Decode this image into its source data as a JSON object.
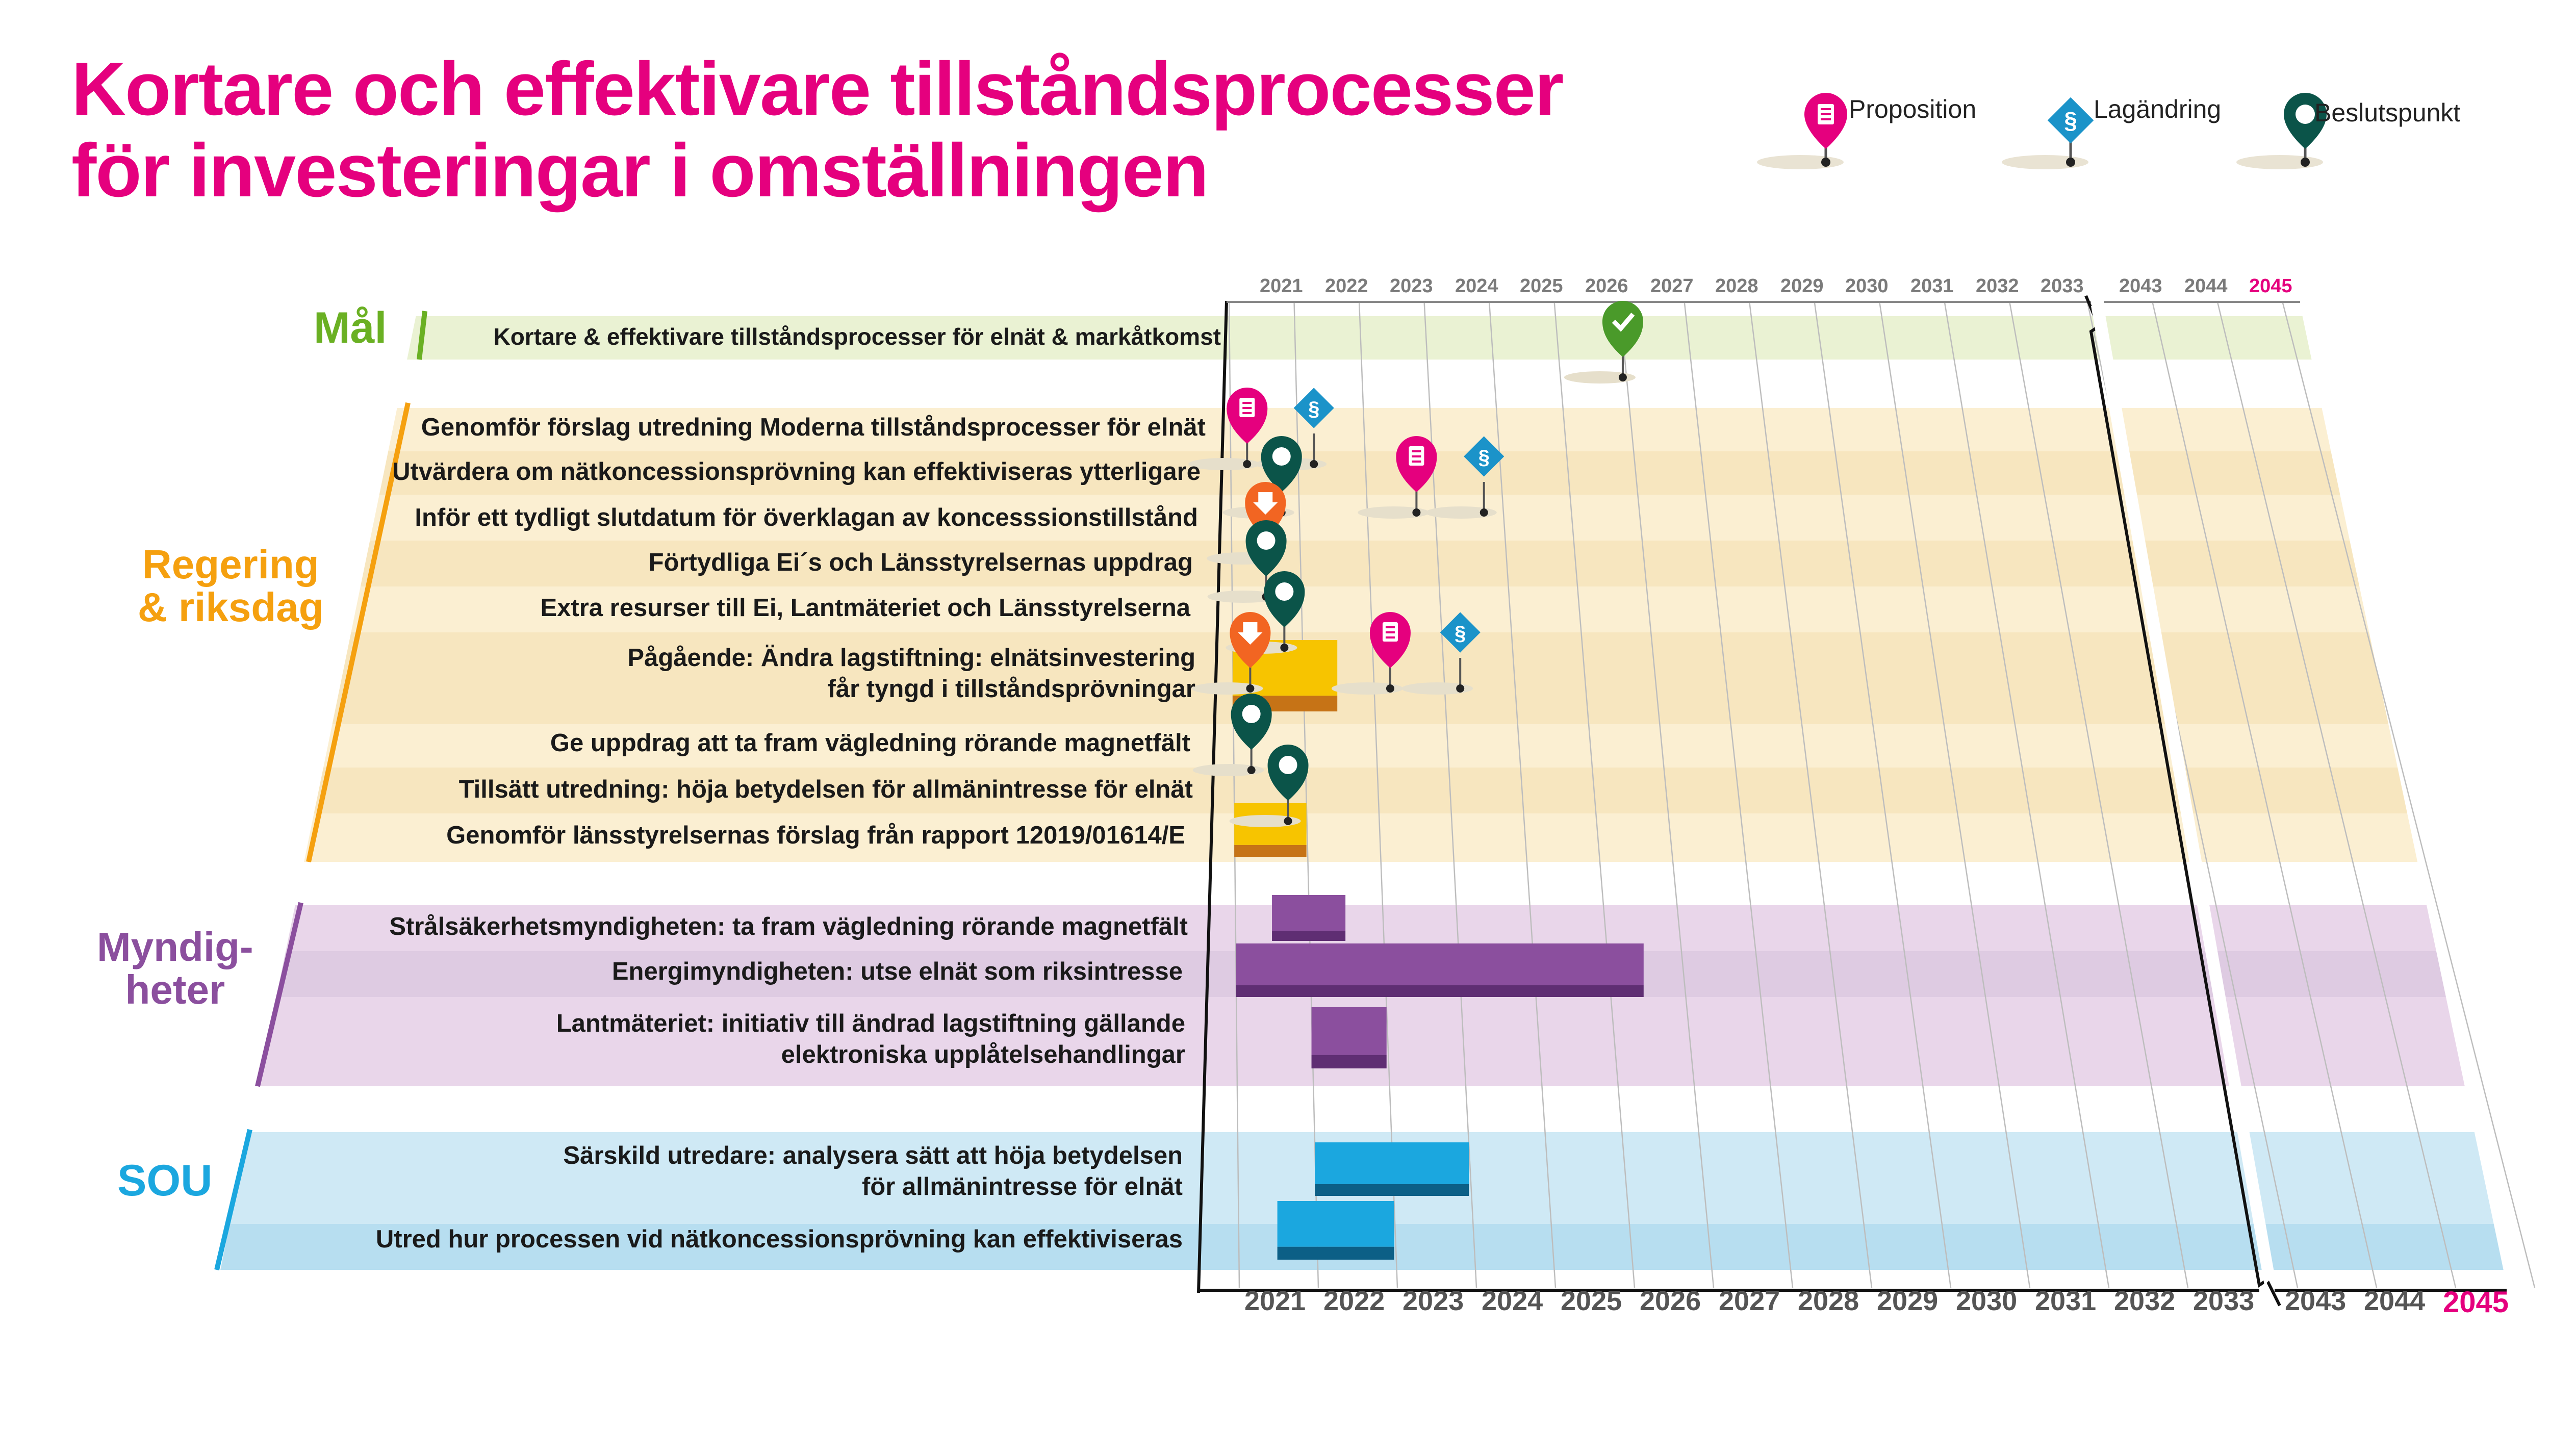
{
  "title": {
    "line1": "Kortare och effektivare tillståndsprocesser",
    "line2": "för investeringar i omställningen"
  },
  "legend": [
    {
      "icon": "proposition-pin-icon",
      "label": "Proposition",
      "color": "#e5007e"
    },
    {
      "icon": "lagandring-diamond-icon",
      "label": "Lagändring",
      "color": "#1b93c9"
    },
    {
      "icon": "beslutspunkt-pin-icon",
      "label": "Beslutspunkt",
      "color": "#0b5449"
    }
  ],
  "years_top": [
    "2021",
    "2022",
    "2023",
    "2024",
    "2025",
    "2026",
    "2027",
    "2028",
    "2029",
    "2030",
    "2031",
    "2032",
    "2033",
    "2043",
    "2044",
    "2045"
  ],
  "years_bottom": [
    "2021",
    "2022",
    "2023",
    "2024",
    "2025",
    "2026",
    "2027",
    "2028",
    "2029",
    "2030",
    "2031",
    "2032",
    "2033",
    "2043",
    "2044",
    "2045"
  ],
  "groups": {
    "mal": {
      "label": "Mål",
      "color": "#6ab023"
    },
    "regering": {
      "line1": "Regering",
      "line2": "& riksdag",
      "color": "#f5a00f"
    },
    "myndigheter": {
      "line1": "Myndig-",
      "line2": "heter",
      "color": "#8b4f9e"
    },
    "sou": {
      "label": "SOU",
      "color": "#1ba7df"
    }
  },
  "rows": {
    "mal": "Kortare & effektivare tillståndsprocesser för elnät & markåtkomst",
    "r1": "Genomför förslag utredning Moderna tillståndsprocesser för elnät",
    "r2": "Utvärdera om nätkoncessionsprövning kan effektiviseras ytterligare",
    "r3": "Inför ett tydligt slutdatum för överklagan av koncesssionstillstånd",
    "r4": "Förtydliga Ei´s och Länsstyrelsernas uppdrag",
    "r5": "Extra resurser till Ei, Lantmäteriet och Länsstyrelserna",
    "r6a": "Pågående: Ändra lagstiftning: elnätsinvestering",
    "r6b": "får tyngd i tillståndsprövningar",
    "r7": "Ge uppdrag att ta fram vägledning rörande magnetfält",
    "r8": "Tillsätt utredning: höja betydelsen för allmänintresse för elnät",
    "r9": "Genomför länsstyrelsernas förslag från rapport 12019/01614/E",
    "m1": "Strålsäkerhetsmyndigheten: ta fram vägledning rörande magnetfält",
    "m2": "Energimyndigheten: utse elnät som riksintresse",
    "m3a": "Lantmäteriet: initiativ till ändrad lagstiftning gällande",
    "m3b": "elektroniska upplåtelsehandlingar",
    "s1a": "Särskild utredare: analysera sätt att höja betydelsen",
    "s1b": "för allmänintresse för elnät",
    "s2": "Utred hur processen vid nätkoncessionsprövning kan effektiviseras"
  },
  "bars": [
    {
      "row": "r6",
      "start": 2021.0,
      "end": 2022.5,
      "color": "#f7c400"
    },
    {
      "row": "r9",
      "start": 2021.0,
      "end": 2022.0,
      "color": "#f7c400"
    },
    {
      "row": "m1",
      "start": 2021.5,
      "end": 2022.5,
      "color": "#8b4f9e"
    },
    {
      "row": "m2",
      "start": 2021.0,
      "end": 2026.5,
      "color": "#8b4f9e"
    },
    {
      "row": "m3",
      "start": 2022.0,
      "end": 2023.0,
      "color": "#8b4f9e"
    },
    {
      "row": "s1",
      "start": 2022.0,
      "end": 2024.0,
      "color": "#1ba7df"
    },
    {
      "row": "s2",
      "start": 2021.5,
      "end": 2023.0,
      "color": "#1ba7df"
    }
  ],
  "milestones": [
    {
      "row": "mal",
      "type": "mal-check",
      "year": 2027.0
    },
    {
      "row": "r1",
      "type": "proposition",
      "year": 2021.25
    },
    {
      "row": "r1",
      "type": "lagandring",
      "year": 2022.25
    },
    {
      "row": "r2",
      "type": "beslutspunkt",
      "year": 2021.75
    },
    {
      "row": "r2",
      "type": "proposition",
      "year": 2023.75
    },
    {
      "row": "r2",
      "type": "lagandring",
      "year": 2024.75
    },
    {
      "row": "r3",
      "type": "varning",
      "year": 2021.5
    },
    {
      "row": "r4",
      "type": "beslutspunkt",
      "year": 2021.5
    },
    {
      "row": "r5",
      "type": "beslutspunkt",
      "year": 2021.75
    },
    {
      "row": "r6",
      "type": "varning",
      "year": 2021.25
    },
    {
      "row": "r6",
      "type": "proposition",
      "year": 2023.25
    },
    {
      "row": "r6",
      "type": "lagandring",
      "year": 2024.25
    },
    {
      "row": "r7",
      "type": "beslutspunkt",
      "year": 2021.25
    },
    {
      "row": "r8",
      "type": "beslutspunkt",
      "year": 2021.75
    }
  ]
}
